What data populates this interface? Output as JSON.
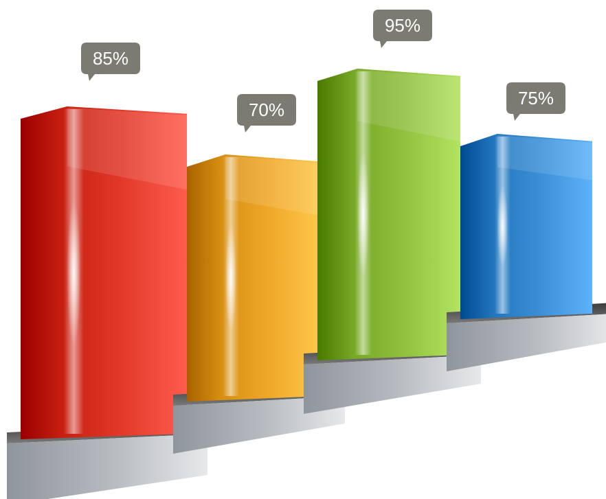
{
  "chart_data": {
    "type": "bar",
    "title": "",
    "xlabel": "",
    "ylabel": "",
    "ylim": [
      0,
      100
    ],
    "grid": false,
    "legend": "none",
    "categories": [
      "",
      "",
      "",
      ""
    ],
    "values": [
      85,
      70,
      95,
      75
    ],
    "labels": [
      "85%",
      "70%",
      "95%",
      "75%"
    ],
    "colors": [
      "#e0392a",
      "#f0a82a",
      "#8fc03e",
      "#3a8fd6"
    ]
  }
}
